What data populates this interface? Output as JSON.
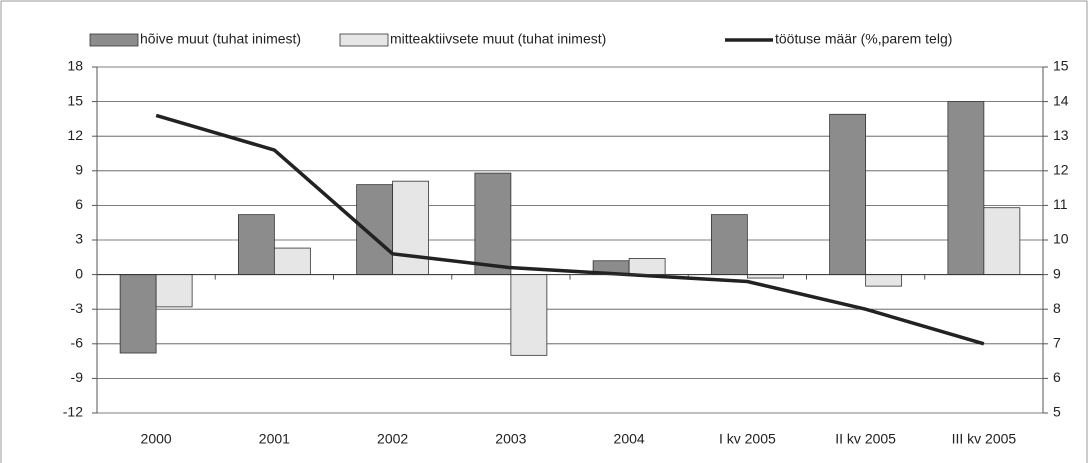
{
  "chart_data": {
    "type": "bar",
    "categories": [
      "2000",
      "2001",
      "2002",
      "2003",
      "2004",
      "I kv 2005",
      "II kv 2005",
      "III kv 2005"
    ],
    "series": [
      {
        "name": "hõive muut (tuhat inimest)",
        "color": "#8c8c8c",
        "values": [
          -6.8,
          5.2,
          7.8,
          8.8,
          1.2,
          5.2,
          13.9,
          15.0
        ]
      },
      {
        "name": "mitteaktiivsete muut (tuhat inimest)",
        "color": "#e6e6e6",
        "values": [
          -2.8,
          2.3,
          8.1,
          -7.0,
          1.4,
          -0.3,
          -1.0,
          5.8
        ]
      },
      {
        "name": "töötuse määr (%,parem telg)",
        "color": "#222222",
        "type": "line",
        "axis": "y2",
        "values": [
          13.6,
          12.6,
          9.6,
          9.2,
          9.0,
          8.8,
          8.0,
          7.0
        ]
      }
    ],
    "ylim": [
      -12,
      18
    ],
    "yticks": [
      -12,
      -9,
      -6,
      -3,
      0,
      3,
      6,
      9,
      12,
      15,
      18
    ],
    "y2lim": [
      5,
      15
    ],
    "y2ticks": [
      5,
      6,
      7,
      8,
      9,
      10,
      11,
      12,
      13,
      14,
      15
    ],
    "grid": true,
    "legend": "top"
  }
}
